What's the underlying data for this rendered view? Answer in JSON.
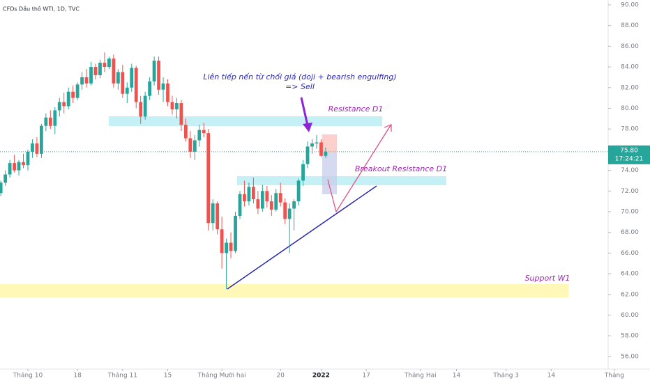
{
  "chart_data": {
    "type": "candlestick",
    "title": "CFDs Dầu thô WTI, 1D, TVC",
    "x": [
      -6,
      -5,
      -4,
      -3,
      -2,
      -1,
      0,
      1,
      2,
      3,
      4,
      5,
      6,
      7,
      8,
      9,
      10,
      11,
      12,
      13,
      14,
      15,
      16,
      17,
      18,
      19,
      20,
      21,
      22,
      23,
      24,
      25,
      26,
      27,
      28,
      29,
      30,
      31,
      32,
      33,
      34,
      35,
      36,
      37,
      38,
      39,
      40,
      41,
      42,
      43,
      44,
      45,
      46,
      47,
      48,
      49,
      50,
      51,
      52,
      53,
      54,
      55,
      56,
      57,
      58,
      59,
      60,
      61,
      62,
      63,
      64,
      65,
      66
    ],
    "open": [
      71.8,
      72.8,
      73.6,
      74.7,
      74.0,
      74.8,
      74.5,
      75.8,
      76.6,
      75.6,
      78.3,
      79.1,
      78.3,
      79.8,
      80.6,
      80.2,
      81.6,
      81.0,
      82.3,
      83.0,
      82.4,
      84.0,
      83.2,
      84.4,
      84.0,
      84.8,
      82.4,
      83.5,
      81.4,
      82.0,
      83.9,
      80.6,
      79.2,
      81.2,
      82.6,
      84.6,
      81.8,
      82.4,
      80.6,
      79.9,
      80.5,
      78.4,
      77.1,
      75.8,
      76.9,
      77.9,
      77.6,
      68.9,
      70.8,
      68.3,
      66.0,
      67.0,
      66.2,
      69.6,
      71.7,
      71.0,
      72.4,
      71.2,
      70.3,
      72.0,
      71.0,
      70.2,
      71.8,
      70.9,
      69.3,
      70.3,
      71.0,
      73.0,
      74.6,
      76.3,
      76.6,
      76.7,
      75.4
    ],
    "high": [
      73.0,
      74.0,
      75.0,
      75.5,
      75.0,
      75.6,
      76.0,
      77.0,
      77.2,
      78.5,
      79.5,
      79.8,
      80.1,
      81.0,
      81.5,
      82.0,
      82.2,
      82.5,
      83.5,
      83.8,
      84.5,
      84.3,
      84.7,
      85.4,
      85.0,
      85.2,
      83.8,
      84.2,
      82.5,
      84.3,
      84.1,
      81.2,
      81.6,
      83.0,
      85.0,
      85.0,
      83.0,
      82.8,
      81.2,
      81.0,
      80.8,
      79.0,
      77.8,
      77.4,
      78.4,
      78.6,
      78.0,
      71.2,
      71.0,
      69.5,
      67.4,
      68.0,
      70.0,
      72.0,
      73.0,
      72.8,
      73.3,
      72.0,
      72.6,
      72.5,
      71.6,
      72.2,
      72.8,
      71.3,
      70.8,
      71.2,
      73.2,
      75.0,
      76.8,
      77.0,
      77.4,
      77.0,
      76.2
    ],
    "low": [
      71.5,
      72.5,
      73.3,
      73.8,
      73.5,
      74.2,
      74.0,
      75.2,
      75.3,
      75.2,
      77.8,
      78.0,
      77.5,
      79.2,
      79.5,
      79.9,
      80.5,
      80.8,
      81.8,
      82.0,
      82.2,
      82.8,
      82.9,
      83.5,
      83.8,
      82.0,
      81.8,
      81.0,
      80.5,
      81.6,
      80.0,
      78.5,
      78.9,
      80.8,
      82.2,
      81.3,
      80.6,
      80.2,
      79.4,
      79.0,
      77.8,
      76.8,
      75.2,
      75.0,
      76.3,
      77.2,
      68.2,
      68.2,
      67.8,
      64.5,
      62.5,
      65.5,
      66.0,
      69.3,
      70.5,
      70.6,
      70.8,
      69.8,
      70.0,
      70.4,
      69.6,
      70.0,
      70.5,
      68.8,
      66.0,
      68.2,
      70.6,
      72.5,
      74.2,
      75.6,
      76.1,
      75.3,
      75.2
    ],
    "close": [
      72.8,
      73.6,
      74.7,
      74.0,
      74.8,
      74.5,
      75.8,
      76.6,
      75.6,
      78.3,
      79.1,
      78.3,
      79.8,
      80.6,
      80.2,
      81.6,
      81.0,
      82.3,
      83.0,
      82.4,
      84.0,
      83.2,
      84.4,
      84.0,
      84.8,
      82.4,
      83.5,
      81.4,
      82.0,
      83.9,
      80.6,
      79.2,
      81.2,
      82.6,
      84.6,
      81.8,
      82.4,
      80.6,
      79.9,
      80.5,
      78.4,
      77.1,
      75.8,
      76.9,
      77.9,
      77.6,
      68.9,
      70.8,
      68.3,
      66.0,
      67.0,
      66.2,
      69.6,
      71.7,
      71.0,
      72.4,
      71.2,
      70.3,
      72.0,
      71.0,
      70.2,
      71.8,
      70.9,
      69.3,
      70.3,
      71.0,
      73.0,
      74.6,
      76.3,
      76.6,
      76.7,
      75.4,
      75.8
    ],
    "up_color": "#26a69a",
    "down_color": "#ef5350",
    "xlim": [
      -6.18,
      137.9
    ],
    "xticks": [
      {
        "value": 0,
        "label": "Tháng 10"
      },
      {
        "value": 11,
        "label": "18"
      },
      {
        "value": 21,
        "label": "Tháng 11"
      },
      {
        "value": 31,
        "label": "15"
      },
      {
        "value": 43,
        "label": "Tháng Mười hai"
      },
      {
        "value": 56,
        "label": "20"
      },
      {
        "value": 65,
        "label": "2022"
      },
      {
        "value": 75,
        "label": "17"
      },
      {
        "value": 87,
        "label": "Tháng Hai"
      },
      {
        "value": 95,
        "label": "14"
      },
      {
        "value": 106,
        "label": "Tháng 3"
      },
      {
        "value": 116,
        "label": "14"
      },
      {
        "value": 130,
        "label": "Tháng"
      }
    ],
    "ylim": [
      54.78,
      90.47
    ],
    "yticks": [
      {
        "value": 56,
        "label": "56.00"
      },
      {
        "value": 58,
        "label": "58.00"
      },
      {
        "value": 60,
        "label": "60.00"
      },
      {
        "value": 62,
        "label": "62.00"
      },
      {
        "value": 64,
        "label": "64.00"
      },
      {
        "value": 66,
        "label": "66.00"
      },
      {
        "value": 68,
        "label": "68.00"
      },
      {
        "value": 70,
        "label": "70.00"
      },
      {
        "value": 72,
        "label": "72.00"
      },
      {
        "value": 74,
        "label": "74.00"
      },
      {
        "value": 76,
        "label": "76.00"
      },
      {
        "value": 78,
        "label": "78.00"
      },
      {
        "value": 80,
        "label": "80.00"
      },
      {
        "value": 82,
        "label": "82.00"
      },
      {
        "value": 84,
        "label": "84.00"
      },
      {
        "value": 86,
        "label": "86.00"
      },
      {
        "value": 88,
        "label": "88.00"
      },
      {
        "value": 90,
        "label": "90.00"
      }
    ],
    "last_price_label": "75.80",
    "countdown": "17:24:21",
    "annotations": [
      "Liên tiếp nến từ chối giá (doji + bearish engulfing)",
      "=> Sell",
      "Resistance D1",
      "Breakout Resistance D1",
      "Support W1"
    ]
  }
}
